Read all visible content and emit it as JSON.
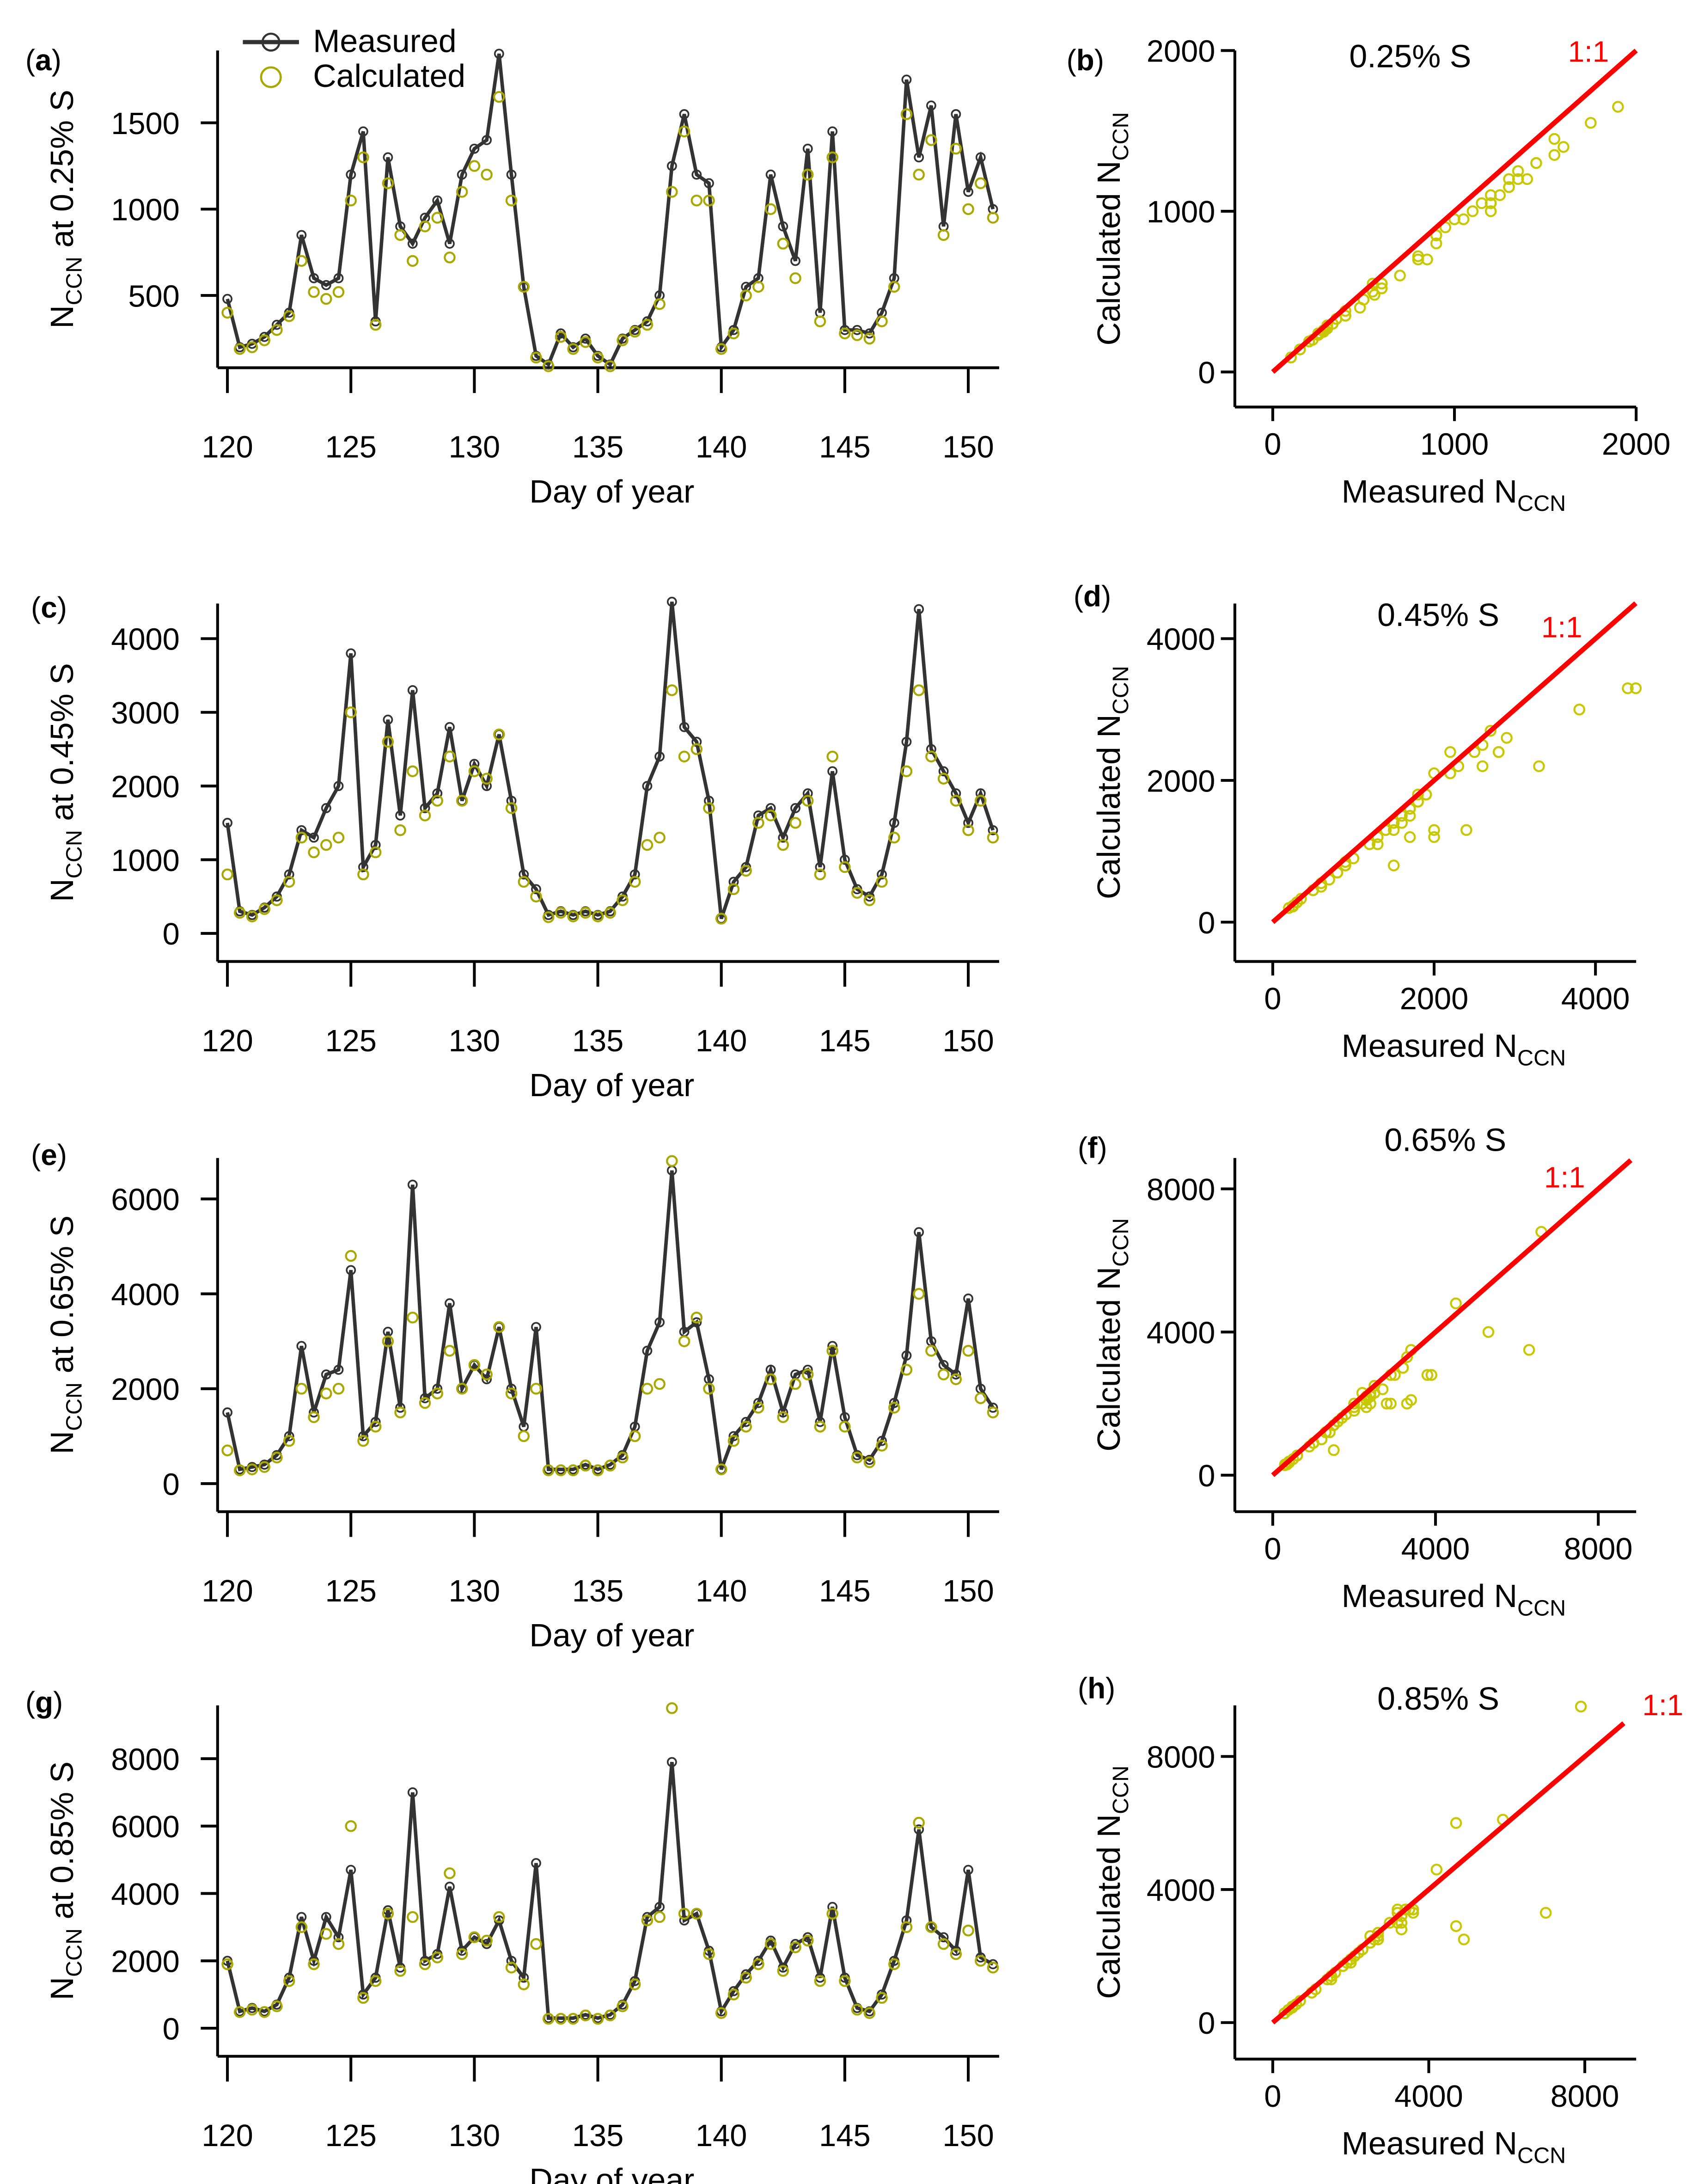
{
  "legend": {
    "measured": "Measured",
    "calculated": "Calculated"
  },
  "colors": {
    "measured": "#333333",
    "calculated": "#a8a800",
    "one_to_one": "#ff0000"
  },
  "chart_data": [
    {
      "id": "a",
      "type": "line",
      "panel_label": "a",
      "xlabel": "Day of year",
      "ylabel_main": "N",
      "ylabel_sub": "CCN",
      "ylabel_rest": " at 0.25% S",
      "xlim": [
        120,
        151
      ],
      "xticks": [
        120,
        125,
        130,
        135,
        140,
        145,
        150
      ],
      "yticks": [
        500,
        1000,
        1500
      ],
      "x_start": 120,
      "x_step": 0.5,
      "series": [
        {
          "name": "Measured",
          "values": [
            480,
            200,
            220,
            260,
            330,
            400,
            850,
            600,
            560,
            600,
            1200,
            1450,
            350,
            1300,
            900,
            800,
            950,
            1050,
            800,
            1200,
            1350,
            1400,
            1900,
            1200,
            550,
            150,
            100,
            280,
            200,
            250,
            150,
            100,
            250,
            300,
            350,
            500,
            1250,
            1550,
            1200,
            1150,
            200,
            300,
            550,
            600,
            1200,
            900,
            700,
            1350,
            400,
            1450,
            300,
            300,
            280,
            400,
            600,
            1750,
            1300,
            1600,
            900,
            1550,
            1100,
            1300,
            1000
          ]
        },
        {
          "name": "Calculated",
          "values": [
            400,
            190,
            200,
            240,
            300,
            380,
            700,
            520,
            480,
            520,
            1050,
            1300,
            330,
            1150,
            850,
            700,
            900,
            950,
            720,
            1100,
            1250,
            1200,
            1650,
            1050,
            550,
            140,
            90,
            260,
            190,
            230,
            140,
            90,
            240,
            290,
            330,
            450,
            1100,
            1450,
            1050,
            1050,
            190,
            280,
            500,
            550,
            1000,
            800,
            600,
            1200,
            350,
            1300,
            280,
            270,
            250,
            350,
            550,
            1550,
            1200,
            1400,
            850,
            1350,
            1000,
            1150,
            950
          ]
        }
      ]
    },
    {
      "id": "b",
      "type": "scatter",
      "panel_label": "b",
      "title": "0.25% S",
      "line_label": "1:1",
      "xlabel_main": "Measured N",
      "xlabel_sub": "CCN",
      "ylabel_main": "Calculated N",
      "ylabel_sub": "CCN",
      "xticks": [
        0,
        1000,
        2000
      ],
      "yticks": [
        0,
        1000,
        2000
      ],
      "one_to_one_max": 2000,
      "points_from": "a"
    },
    {
      "id": "c",
      "type": "line",
      "panel_label": "c",
      "xlabel": "Day of year",
      "ylabel_main": "N",
      "ylabel_sub": "CCN",
      "ylabel_rest": " at 0.45% S",
      "xlim": [
        120,
        151
      ],
      "xticks": [
        120,
        125,
        130,
        135,
        140,
        145,
        150
      ],
      "yticks": [
        0,
        1000,
        2000,
        3000,
        4000
      ],
      "x_start": 120,
      "x_step": 0.5,
      "series": [
        {
          "name": "Measured",
          "values": [
            1500,
            300,
            250,
            350,
            500,
            800,
            1400,
            1300,
            1700,
            2000,
            3800,
            900,
            1200,
            2900,
            1600,
            3300,
            1700,
            1900,
            2800,
            1800,
            2300,
            2000,
            2700,
            1800,
            800,
            600,
            250,
            300,
            250,
            300,
            250,
            300,
            500,
            800,
            2000,
            2400,
            4500,
            2800,
            2600,
            1800,
            200,
            700,
            900,
            1600,
            1700,
            1300,
            1700,
            1900,
            900,
            2200,
            1000,
            600,
            500,
            800,
            1500,
            2600,
            4400,
            2500,
            2200,
            1900,
            1500,
            1900,
            1400
          ]
        },
        {
          "name": "Calculated",
          "values": [
            800,
            280,
            230,
            330,
            450,
            700,
            1300,
            1100,
            1200,
            1300,
            3000,
            800,
            1100,
            2600,
            1400,
            2200,
            1600,
            1800,
            2400,
            1800,
            2200,
            2100,
            2700,
            1700,
            700,
            500,
            220,
            280,
            230,
            280,
            230,
            280,
            450,
            700,
            1200,
            1300,
            3300,
            2400,
            2500,
            1700,
            200,
            600,
            850,
            1500,
            1600,
            1200,
            1500,
            1800,
            800,
            2400,
            900,
            550,
            450,
            700,
            1300,
            2200,
            3300,
            2400,
            2100,
            1800,
            1400,
            1800,
            1300
          ]
        }
      ]
    },
    {
      "id": "d",
      "type": "scatter",
      "panel_label": "d",
      "title": "0.45% S",
      "line_label": "1:1",
      "xlabel_main": "Measured N",
      "xlabel_sub": "CCN",
      "ylabel_main": "Calculated N",
      "ylabel_sub": "CCN",
      "xticks": [
        0,
        2000,
        4000
      ],
      "yticks": [
        0,
        2000,
        4000
      ],
      "one_to_one_max": 4500,
      "points_from": "c"
    },
    {
      "id": "e",
      "type": "line",
      "panel_label": "e",
      "xlabel": "Day of year",
      "ylabel_main": "N",
      "ylabel_sub": "CCN",
      "ylabel_rest": " at 0.65% S",
      "xlim": [
        120,
        151
      ],
      "xticks": [
        120,
        125,
        130,
        135,
        140,
        145,
        150
      ],
      "yticks": [
        0,
        2000,
        4000,
        6000
      ],
      "x_start": 120,
      "x_step": 0.5,
      "series": [
        {
          "name": "Measured",
          "values": [
            1500,
            300,
            350,
            400,
            600,
            1000,
            2900,
            1500,
            2300,
            2400,
            4500,
            1000,
            1300,
            3200,
            1600,
            6300,
            1800,
            2000,
            3800,
            2000,
            2500,
            2200,
            3300,
            2000,
            1200,
            3300,
            300,
            300,
            300,
            400,
            300,
            400,
            600,
            1200,
            2800,
            3400,
            6600,
            3200,
            3400,
            2200,
            300,
            1000,
            1300,
            1700,
            2400,
            1500,
            2300,
            2400,
            1300,
            2900,
            1400,
            600,
            500,
            900,
            1700,
            2700,
            5300,
            3000,
            2500,
            2300,
            3900,
            2000,
            1600
          ]
        },
        {
          "name": "Calculated",
          "values": [
            700,
            280,
            300,
            350,
            550,
            900,
            2000,
            1400,
            1900,
            2000,
            4800,
            900,
            1200,
            3000,
            1500,
            3500,
            1700,
            1900,
            2800,
            2000,
            2500,
            2300,
            3300,
            1900,
            1000,
            2000,
            280,
            280,
            280,
            380,
            280,
            380,
            550,
            1000,
            2000,
            2100,
            6800,
            3000,
            3500,
            2000,
            300,
            900,
            1200,
            1600,
            2200,
            1400,
            2100,
            2300,
            1200,
            2800,
            1200,
            550,
            450,
            800,
            1600,
            2400,
            4000,
            2800,
            2300,
            2200,
            2800,
            1800,
            1500
          ]
        }
      ]
    },
    {
      "id": "f",
      "type": "scatter",
      "panel_label": "f",
      "title": "0.65% S",
      "line_label": "1:1",
      "xlabel_main": "Measured N",
      "xlabel_sub": "CCN",
      "ylabel_main": "Calculated N",
      "ylabel_sub": "CCN",
      "xticks": [
        0,
        4000,
        8000
      ],
      "yticks": [
        0,
        4000,
        8000
      ],
      "one_to_one_max": 8800,
      "points_from": "e"
    },
    {
      "id": "g",
      "type": "line",
      "panel_label": "g",
      "xlabel": "Day of year",
      "ylabel_main": "N",
      "ylabel_sub": "CCN",
      "ylabel_rest": " at 0.85% S",
      "xlim": [
        120,
        151
      ],
      "xticks": [
        120,
        125,
        130,
        135,
        140,
        145,
        150
      ],
      "yticks": [
        0,
        2000,
        4000,
        6000,
        8000
      ],
      "x_start": 120,
      "x_step": 0.5,
      "series": [
        {
          "name": "Measured",
          "values": [
            2000,
            500,
            600,
            500,
            700,
            1500,
            3300,
            2000,
            3300,
            2700,
            4700,
            1000,
            1500,
            3500,
            1800,
            7000,
            2000,
            2200,
            4200,
            2300,
            2700,
            2500,
            3200,
            2000,
            1500,
            4900,
            300,
            300,
            300,
            400,
            300,
            400,
            700,
            1400,
            3300,
            3600,
            7900,
            3200,
            3400,
            2300,
            500,
            1100,
            1600,
            2000,
            2600,
            1800,
            2500,
            2700,
            1500,
            3600,
            1500,
            600,
            500,
            1000,
            2000,
            3200,
            5900,
            3000,
            2700,
            2300,
            4700,
            2100,
            1900
          ]
        },
        {
          "name": "Calculated",
          "values": [
            1900,
            480,
            550,
            480,
            650,
            1400,
            3000,
            1900,
            2800,
            2500,
            6000,
            900,
            1400,
            3400,
            1700,
            3300,
            1900,
            2100,
            4600,
            2200,
            2700,
            2600,
            3300,
            1800,
            1300,
            2500,
            280,
            280,
            280,
            380,
            280,
            380,
            650,
            1300,
            3200,
            3300,
            9500,
            3400,
            3400,
            2200,
            450,
            1000,
            1500,
            1900,
            2500,
            1700,
            2400,
            2600,
            1400,
            3400,
            1400,
            550,
            450,
            900,
            1900,
            3000,
            6100,
            3000,
            2500,
            2200,
            2900,
            2000,
            1800
          ]
        }
      ]
    },
    {
      "id": "h",
      "type": "scatter",
      "panel_label": "h",
      "title": "0.85% S",
      "line_label": "1:1",
      "xlabel_main": "Measured N",
      "xlabel_sub": "CCN",
      "ylabel_main": "Calculated N",
      "ylabel_sub": "CCN",
      "xticks": [
        0,
        4000,
        8000
      ],
      "yticks": [
        0,
        4000,
        8000
      ],
      "one_to_one_max": 9000,
      "points_from": "g"
    }
  ]
}
